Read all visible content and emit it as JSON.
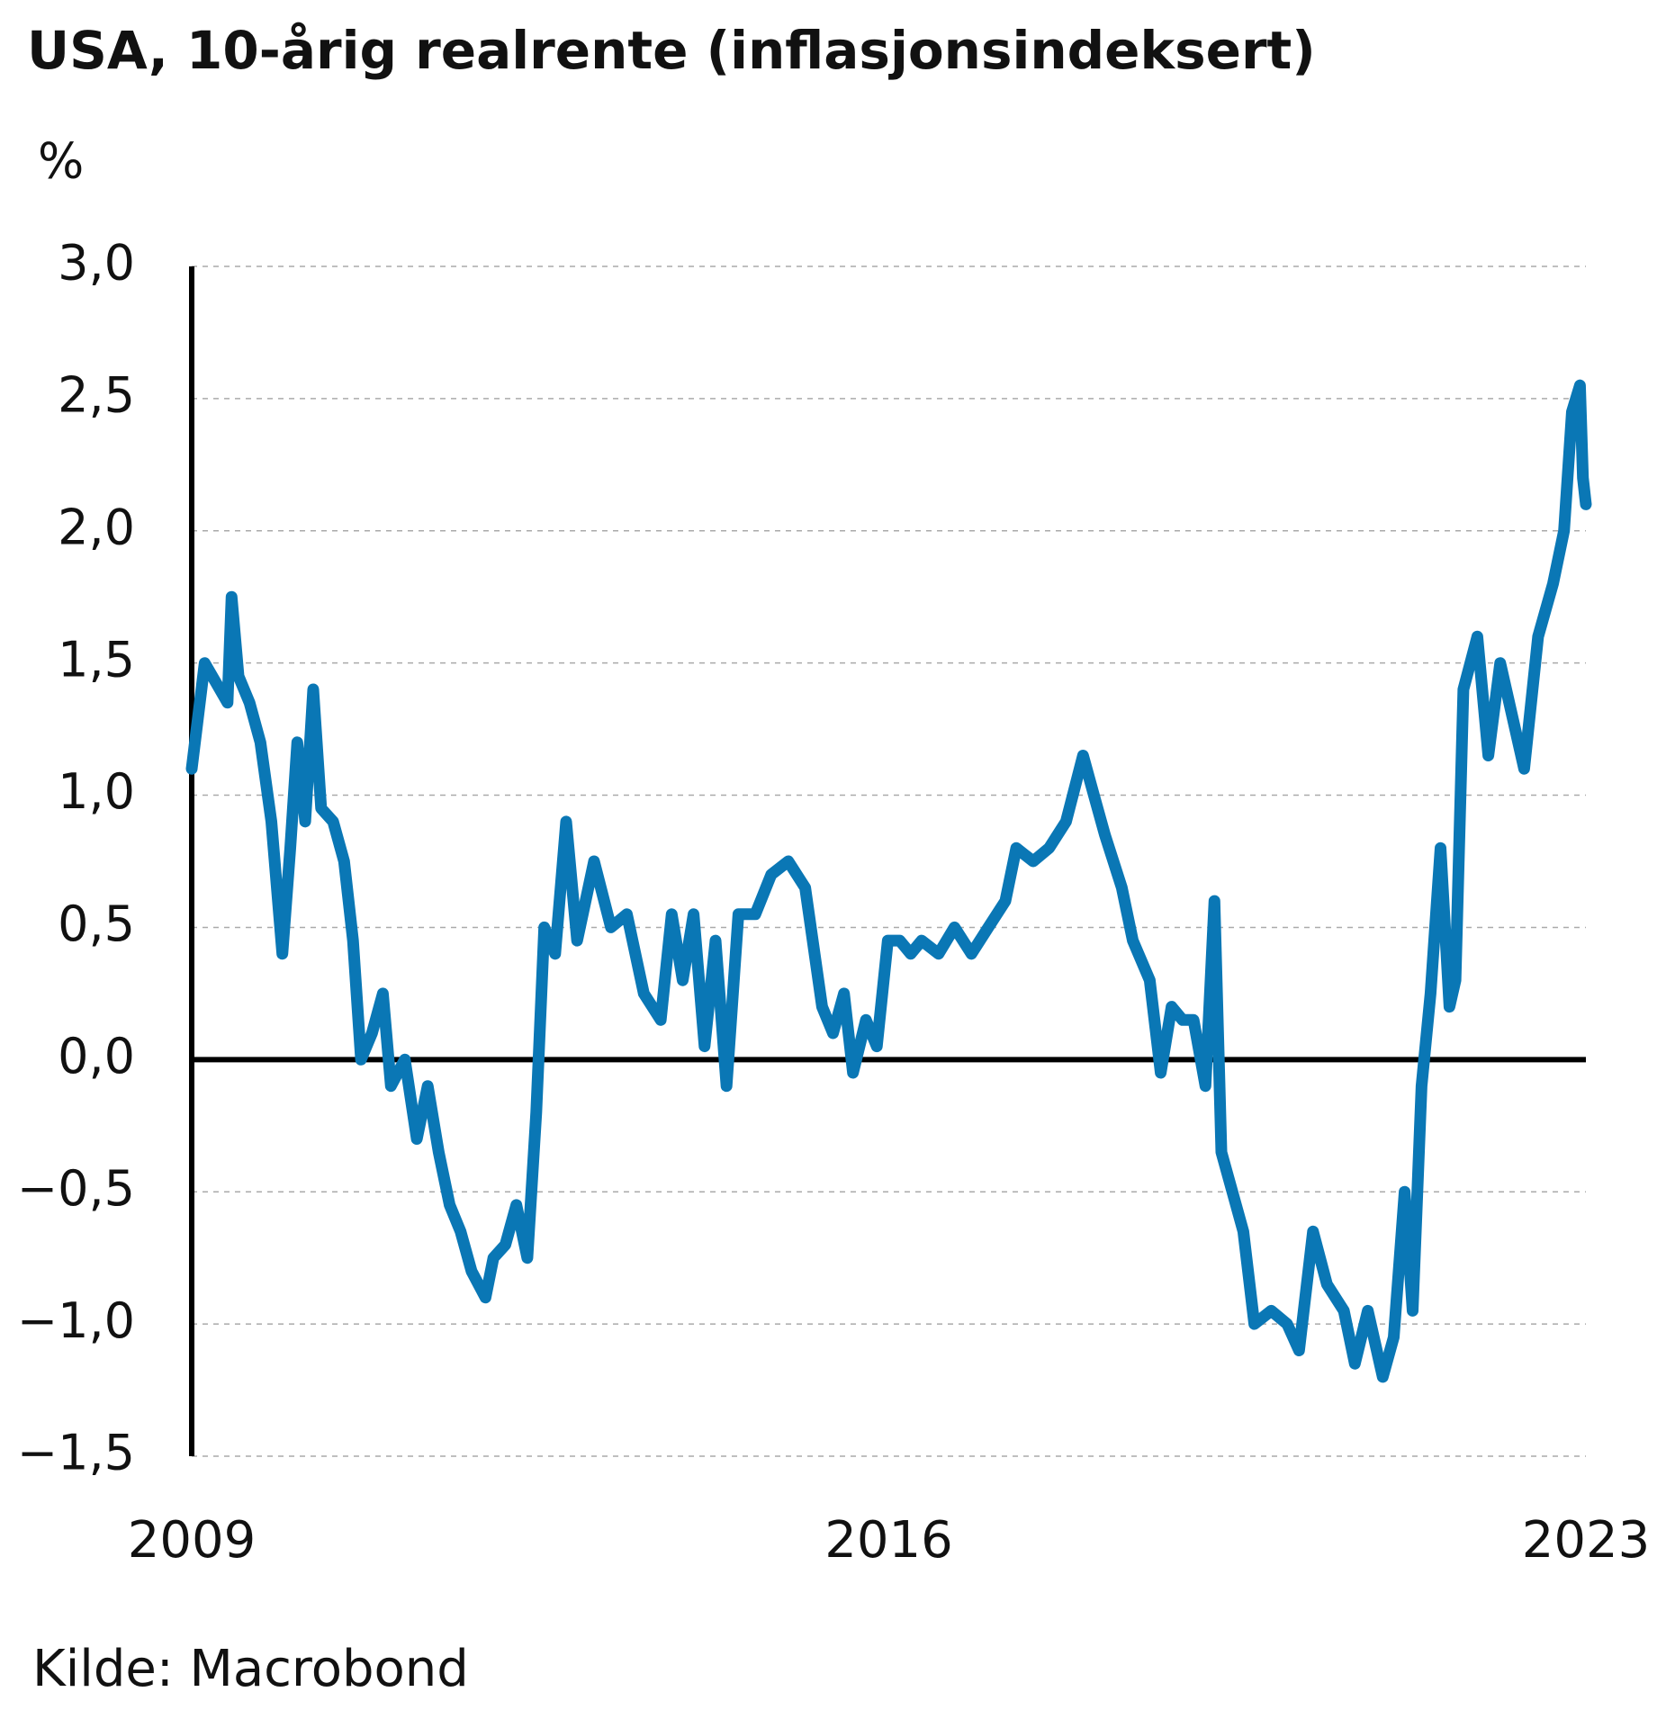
{
  "chart_data": {
    "type": "line",
    "title": "USA, 10-årig realrente (inflasjonsindeksert)",
    "y_label": "%",
    "source": "Kilde: Macrobond",
    "color": "#0a77b5",
    "grid": true,
    "xlim": [
      2009,
      2023
    ],
    "xticks": [
      2009,
      2016,
      2023
    ],
    "ylim": [
      -1.5,
      3.0
    ],
    "yticks": [
      {
        "value": 3.0,
        "label": "3,0"
      },
      {
        "value": 2.5,
        "label": "2,5"
      },
      {
        "value": 2.0,
        "label": "2,0"
      },
      {
        "value": 1.5,
        "label": "1,5"
      },
      {
        "value": 1.0,
        "label": "1,0"
      },
      {
        "value": 0.5,
        "label": "0,5"
      },
      {
        "value": 0.0,
        "label": "0,0"
      },
      {
        "value": -0.5,
        "label": "−0,5"
      },
      {
        "value": -1.0,
        "label": "−1,0"
      },
      {
        "value": -1.5,
        "label": "−1,5"
      }
    ],
    "x": [
      2009.0,
      2009.13,
      2009.36,
      2009.4,
      2009.47,
      2009.58,
      2009.69,
      2009.8,
      2009.91,
      2009.99,
      2010.06,
      2010.14,
      2010.22,
      2010.3,
      2010.42,
      2010.53,
      2010.62,
      2010.7,
      2010.81,
      2010.92,
      2011.0,
      2011.14,
      2011.26,
      2011.37,
      2011.48,
      2011.59,
      2011.7,
      2011.81,
      2011.95,
      2012.03,
      2012.15,
      2012.26,
      2012.37,
      2012.46,
      2012.54,
      2012.65,
      2012.76,
      2012.87,
      2013.04,
      2013.21,
      2013.37,
      2013.54,
      2013.71,
      2013.82,
      2013.93,
      2014.04,
      2014.15,
      2014.26,
      2014.37,
      2014.49,
      2014.66,
      2014.82,
      2014.99,
      2015.16,
      2015.33,
      2015.44,
      2015.55,
      2015.64,
      2015.77,
      2015.88,
      2015.99,
      2016.11,
      2016.22,
      2016.33,
      2016.5,
      2016.66,
      2016.83,
      2017.0,
      2017.17,
      2017.28,
      2017.45,
      2017.61,
      2017.78,
      2017.95,
      2018.06,
      2018.17,
      2018.34,
      2018.45,
      2018.62,
      2018.73,
      2018.84,
      2018.95,
      2019.06,
      2019.18,
      2019.27,
      2019.34,
      2019.45,
      2019.56,
      2019.67,
      2019.84,
      2020.0,
      2020.12,
      2020.26,
      2020.4,
      2020.57,
      2020.68,
      2020.81,
      2020.96,
      2021.07,
      2021.18,
      2021.26,
      2021.35,
      2021.44,
      2021.54,
      2021.63,
      2021.69,
      2021.77,
      2021.91,
      2022.02,
      2022.14,
      2022.26,
      2022.38,
      2022.52,
      2022.67,
      2022.78,
      2022.86,
      2022.94,
      2022.97,
      2023.0
    ],
    "values": [
      1.1,
      1.5,
      1.35,
      1.75,
      1.45,
      1.35,
      1.2,
      0.9,
      0.4,
      0.8,
      1.2,
      0.9,
      1.4,
      0.95,
      0.9,
      0.75,
      0.45,
      0.0,
      0.1,
      0.25,
      -0.1,
      0.0,
      -0.3,
      -0.1,
      -0.35,
      -0.55,
      -0.65,
      -0.8,
      -0.9,
      -0.75,
      -0.7,
      -0.55,
      -0.75,
      -0.2,
      0.5,
      0.4,
      0.9,
      0.45,
      0.75,
      0.5,
      0.55,
      0.25,
      0.15,
      0.55,
      0.3,
      0.55,
      0.05,
      0.45,
      -0.1,
      0.55,
      0.55,
      0.7,
      0.75,
      0.65,
      0.2,
      0.1,
      0.25,
      -0.05,
      0.15,
      0.05,
      0.45,
      0.45,
      0.4,
      0.45,
      0.4,
      0.5,
      0.4,
      0.5,
      0.6,
      0.8,
      0.75,
      0.8,
      0.9,
      1.15,
      1.0,
      0.85,
      0.65,
      0.45,
      0.3,
      -0.05,
      0.2,
      0.15,
      0.15,
      -0.1,
      0.6,
      -0.35,
      -0.5,
      -0.65,
      -1.0,
      -0.95,
      -1.0,
      -1.1,
      -0.65,
      -0.85,
      -0.95,
      -1.15,
      -0.95,
      -1.2,
      -1.05,
      -0.5,
      -0.95,
      -0.1,
      0.25,
      0.8,
      0.2,
      0.3,
      1.4,
      1.6,
      1.15,
      1.5,
      1.3,
      1.1,
      1.6,
      1.8,
      2.0,
      2.45,
      2.55,
      2.2,
      2.1
    ]
  }
}
